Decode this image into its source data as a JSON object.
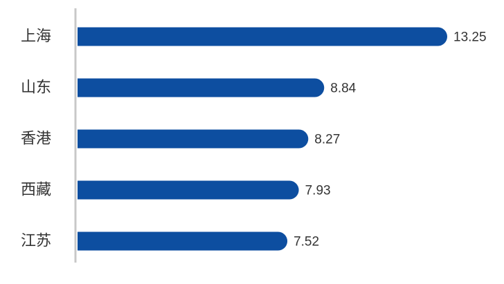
{
  "chart_data": {
    "type": "bar",
    "orientation": "horizontal",
    "title": "",
    "xlabel": "",
    "ylabel": "",
    "categories": [
      "上海",
      "山东",
      "香港",
      "西藏",
      "江苏"
    ],
    "values": [
      13.25,
      8.84,
      8.27,
      7.93,
      7.52
    ],
    "value_labels": [
      "13.25",
      "8.84",
      "8.27",
      "7.93",
      "7.52"
    ],
    "xlim": [
      0,
      13.25
    ],
    "grid": false,
    "legend": "none",
    "bar_color": "#0d4ea0",
    "axis_color": "#c8c8c8",
    "text_color": "#333333"
  }
}
